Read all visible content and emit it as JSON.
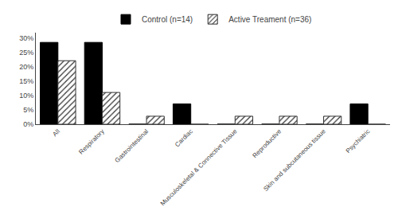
{
  "chart_data": {
    "type": "bar",
    "categories": [
      "All",
      "Respiratory",
      "Gastrointestinal",
      "Cardiac",
      "Musculoskeletal & Connective Tissue",
      "Reproductive",
      "Skin and subcutaneous tissue",
      "Psychiatric"
    ],
    "series": [
      {
        "name": "Control (n=14)",
        "color": "#000000",
        "values": [
          0.286,
          0.286,
          0.0,
          0.071,
          0.0,
          0.0,
          0.0,
          0.071
        ]
      },
      {
        "name": "Active Treament (n=36)",
        "color": "#ffffff",
        "values": [
          0.222,
          0.111,
          0.028,
          0.0,
          0.028,
          0.028,
          0.028,
          0.0
        ]
      }
    ],
    "ylim": [
      0,
      0.32
    ],
    "yticks": [
      {
        "value": 0.0,
        "label": "0%"
      },
      {
        "value": 0.05,
        "label": "5%"
      },
      {
        "value": 0.1,
        "label": "10%"
      },
      {
        "value": 0.15,
        "label": "15%"
      },
      {
        "value": 0.2,
        "label": "20%"
      },
      {
        "value": 0.25,
        "label": "25%"
      },
      {
        "value": 0.3,
        "label": "30%"
      }
    ],
    "grid": false,
    "legend": "top"
  }
}
